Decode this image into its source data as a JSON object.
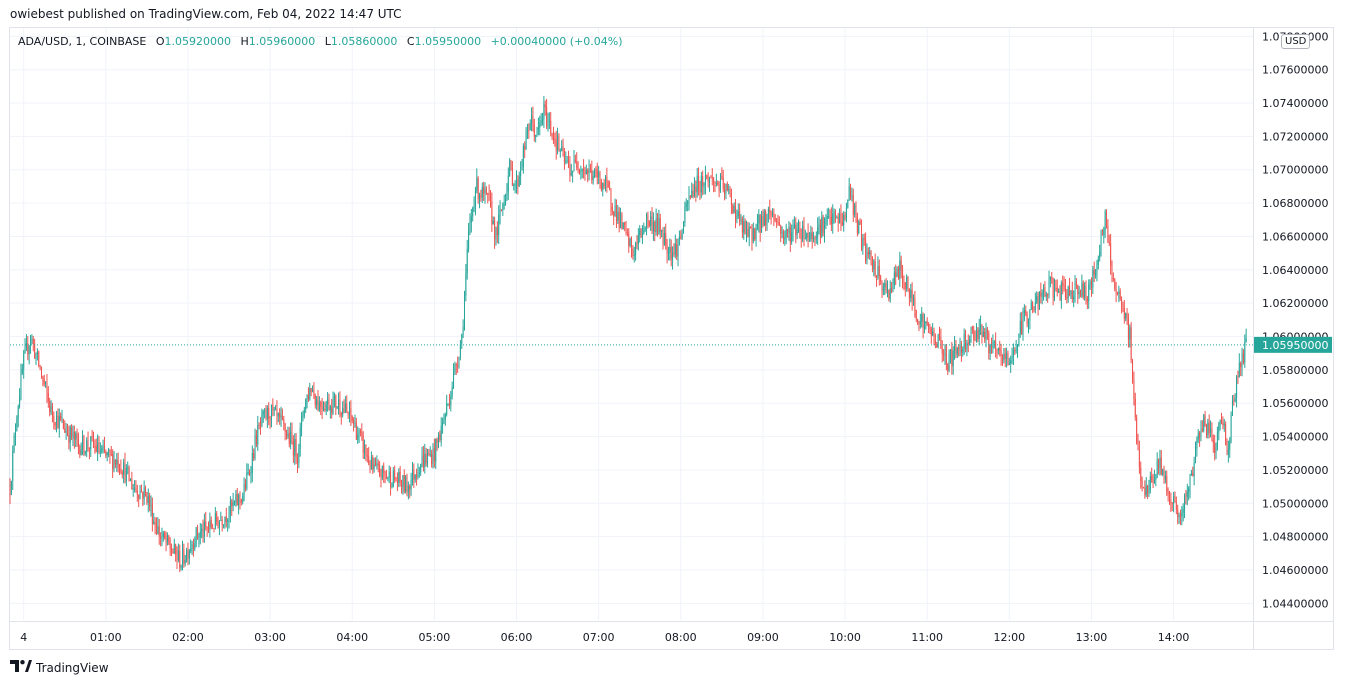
{
  "header": {
    "publish_line": "owiebest published on TradingView.com, Feb 04, 2022 14:47 UTC"
  },
  "legend": {
    "symbol": "ADA/USD, 1, COINBASE",
    "open_label": "O",
    "open": "1.05920000",
    "high_label": "H",
    "high": "1.05960000",
    "low_label": "L",
    "low": "1.05860000",
    "close_label": "C",
    "close": "1.05950000",
    "change": "+0.00040000 (+0.04%)"
  },
  "currency": "USD",
  "footer": {
    "brand": "TradingView",
    "logo_icon": "tradingview-logo-icon"
  },
  "colors": {
    "up": "#26a69a",
    "down": "#ef5350",
    "grid": "#f0f3fa",
    "axis_text": "#131722"
  },
  "chart_data": {
    "type": "candlestick",
    "y_range": [
      1.043,
      1.0785
    ],
    "y_ticks": [
      1.044,
      1.046,
      1.048,
      1.05,
      1.052,
      1.054,
      1.056,
      1.058,
      1.06,
      1.062,
      1.064,
      1.066,
      1.068,
      1.07,
      1.072,
      1.074,
      1.076,
      1.078
    ],
    "y_tick_labels": [
      "1.04400000",
      "1.04600000",
      "1.04800000",
      "1.05000000",
      "1.05200000",
      "1.05400000",
      "1.05600000",
      "1.05800000",
      "1.06000000",
      "1.06200000",
      "1.06400000",
      "1.06600000",
      "1.06800000",
      "1.07000000",
      "1.07200000",
      "1.07400000",
      "1.07600000",
      "1.07800000"
    ],
    "x_range_minutes": [
      -10,
      898
    ],
    "x_ticks_minutes": [
      0,
      60,
      120,
      180,
      240,
      300,
      360,
      420,
      480,
      540,
      600,
      660,
      720,
      780,
      840
    ],
    "x_tick_labels": [
      "4",
      "01:00",
      "02:00",
      "03:00",
      "04:00",
      "05:00",
      "06:00",
      "07:00",
      "08:00",
      "09:00",
      "10:00",
      "11:00",
      "12:00",
      "13:00",
      "14:00"
    ],
    "last_price": 1.0595,
    "last_price_label": "1.05950000",
    "path_anchors": [
      [
        -10,
        1.051
      ],
      [
        -5,
        1.0555
      ],
      [
        0,
        1.0585
      ],
      [
        5,
        1.06
      ],
      [
        12,
        1.058
      ],
      [
        20,
        1.0555
      ],
      [
        30,
        1.0545
      ],
      [
        40,
        1.0535
      ],
      [
        50,
        1.0535
      ],
      [
        60,
        1.0528
      ],
      [
        70,
        1.0525
      ],
      [
        80,
        1.051
      ],
      [
        90,
        1.0505
      ],
      [
        95,
        1.049
      ],
      [
        100,
        1.048
      ],
      [
        110,
        1.047
      ],
      [
        115,
        1.0465
      ],
      [
        125,
        1.048
      ],
      [
        135,
        1.0485
      ],
      [
        150,
        1.0495
      ],
      [
        160,
        1.0505
      ],
      [
        165,
        1.052
      ],
      [
        170,
        1.054
      ],
      [
        175,
        1.055
      ],
      [
        180,
        1.0555
      ],
      [
        190,
        1.0545
      ],
      [
        200,
        1.053
      ],
      [
        205,
        1.056
      ],
      [
        210,
        1.057
      ],
      [
        215,
        1.056
      ],
      [
        230,
        1.056
      ],
      [
        240,
        1.055
      ],
      [
        245,
        1.054
      ],
      [
        250,
        1.053
      ],
      [
        255,
        1.052
      ],
      [
        270,
        1.0515
      ],
      [
        280,
        1.051
      ],
      [
        290,
        1.0525
      ],
      [
        300,
        1.053
      ],
      [
        305,
        1.0545
      ],
      [
        310,
        1.056
      ],
      [
        315,
        1.058
      ],
      [
        320,
        1.06
      ],
      [
        325,
        1.066
      ],
      [
        330,
        1.069
      ],
      [
        340,
        1.068
      ],
      [
        345,
        1.066
      ],
      [
        350,
        1.068
      ],
      [
        355,
        1.07
      ],
      [
        360,
        1.069
      ],
      [
        365,
        1.071
      ],
      [
        370,
        1.073
      ],
      [
        375,
        1.072
      ],
      [
        380,
        1.0735
      ],
      [
        385,
        1.0725
      ],
      [
        390,
        1.0715
      ],
      [
        395,
        1.0705
      ],
      [
        400,
        1.07
      ],
      [
        405,
        1.0705
      ],
      [
        410,
        1.07
      ],
      [
        420,
        1.0695
      ],
      [
        425,
        1.069
      ],
      [
        430,
        1.068
      ],
      [
        435,
        1.067
      ],
      [
        440,
        1.066
      ],
      [
        445,
        1.065
      ],
      [
        450,
        1.066
      ],
      [
        455,
        1.067
      ],
      [
        465,
        1.0665
      ],
      [
        470,
        1.0655
      ],
      [
        475,
        1.065
      ],
      [
        480,
        1.066
      ],
      [
        485,
        1.068
      ],
      [
        490,
        1.069
      ],
      [
        500,
        1.0695
      ],
      [
        510,
        1.069
      ],
      [
        515,
        1.0685
      ],
      [
        520,
        1.0675
      ],
      [
        525,
        1.0665
      ],
      [
        530,
        1.066
      ],
      [
        540,
        1.067
      ],
      [
        545,
        1.0675
      ],
      [
        550,
        1.067
      ],
      [
        555,
        1.066
      ],
      [
        565,
        1.0665
      ],
      [
        575,
        1.066
      ],
      [
        580,
        1.0665
      ],
      [
        590,
        1.067
      ],
      [
        600,
        1.067
      ],
      [
        603,
        1.069
      ],
      [
        608,
        1.067
      ],
      [
        615,
        1.065
      ],
      [
        625,
        1.0635
      ],
      [
        630,
        1.0625
      ],
      [
        640,
        1.064
      ],
      [
        645,
        1.063
      ],
      [
        650,
        1.062
      ],
      [
        655,
        1.061
      ],
      [
        660,
        1.0605
      ],
      [
        670,
        1.0595
      ],
      [
        675,
        1.0585
      ],
      [
        680,
        1.059
      ],
      [
        690,
        1.06
      ],
      [
        700,
        1.0605
      ],
      [
        705,
        1.0595
      ],
      [
        710,
        1.059
      ],
      [
        720,
        1.0585
      ],
      [
        725,
        1.0595
      ],
      [
        730,
        1.061
      ],
      [
        735,
        1.0615
      ],
      [
        740,
        1.062
      ],
      [
        745,
        1.0625
      ],
      [
        750,
        1.063
      ],
      [
        760,
        1.0625
      ],
      [
        770,
        1.063
      ],
      [
        775,
        1.0625
      ],
      [
        780,
        1.063
      ],
      [
        785,
        1.065
      ],
      [
        790,
        1.067
      ],
      [
        793,
        1.065
      ],
      [
        798,
        1.0625
      ],
      [
        803,
        1.0615
      ],
      [
        808,
        1.06
      ],
      [
        812,
        1.055
      ],
      [
        815,
        1.052
      ],
      [
        820,
        1.0505
      ],
      [
        825,
        1.0515
      ],
      [
        830,
        1.0525
      ],
      [
        835,
        1.051
      ],
      [
        840,
        1.05
      ],
      [
        845,
        1.049
      ],
      [
        850,
        1.0505
      ],
      [
        855,
        1.0525
      ],
      [
        860,
        1.055
      ],
      [
        865,
        1.0545
      ],
      [
        870,
        1.0535
      ],
      [
        875,
        1.055
      ],
      [
        878,
        1.054
      ],
      [
        880,
        1.053
      ],
      [
        883,
        1.056
      ],
      [
        888,
        1.058
      ],
      [
        893,
        1.0595
      ]
    ]
  }
}
